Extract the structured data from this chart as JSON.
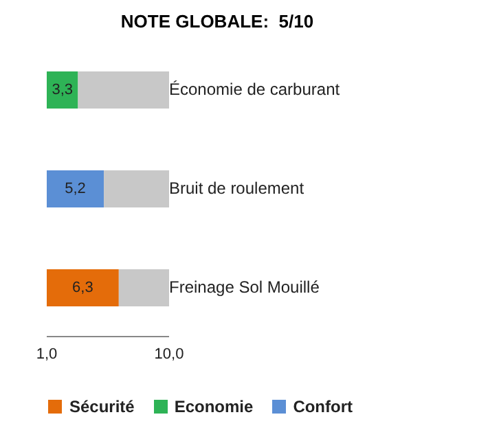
{
  "chart_data": {
    "type": "bar",
    "title": "NOTE GLOBALE:  5/10",
    "orientation": "horizontal",
    "stacked": true,
    "categories": [
      "Économie de carburant",
      "Bruit de roulement",
      "Freinage Sol Mouillé"
    ],
    "series": [
      {
        "name": "Sécurité",
        "color": "#e46c0a",
        "values": [
          null,
          null,
          6.3
        ],
        "value_labels": [
          null,
          null,
          "6,3"
        ]
      },
      {
        "name": "Economie",
        "color": "#2eb356",
        "values": [
          3.3,
          null,
          null
        ],
        "value_labels": [
          "3,3",
          null,
          null
        ]
      },
      {
        "name": "Confort",
        "color": "#5b8fd5",
        "values": [
          null,
          5.2,
          null
        ],
        "value_labels": [
          null,
          "5,2",
          null
        ]
      },
      {
        "color": "#c8c8c8",
        "values": [
          6.7,
          4.8,
          3.7
        ]
      }
    ],
    "xlim": [
      1,
      10
    ],
    "xticks": [
      {
        "value": 1,
        "label": "1,0"
      },
      {
        "value": 10,
        "label": "10,0"
      }
    ],
    "grid": false,
    "legend": "bottom"
  }
}
